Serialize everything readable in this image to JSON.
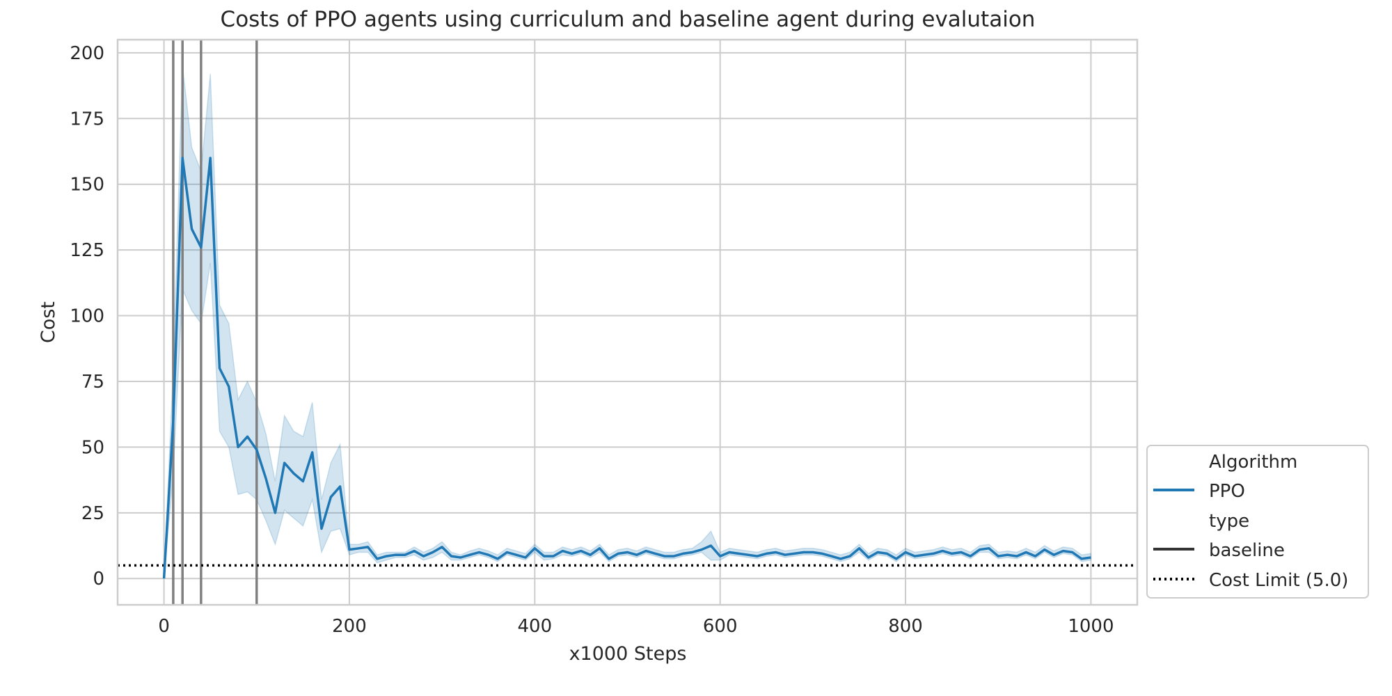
{
  "chart_data": {
    "type": "line",
    "title": "Costs of PPO agents using curriculum and baseline agent during evalutaion",
    "xlabel": "x1000 Steps",
    "ylabel": "Cost",
    "xlim": [
      -50,
      1050
    ],
    "ylim": [
      -10,
      205
    ],
    "xticks": [
      "0",
      "200",
      "400",
      "600",
      "800",
      "1000"
    ],
    "yticks": [
      "0",
      "25",
      "50",
      "75",
      "100",
      "125",
      "150",
      "175",
      "200"
    ],
    "grid": true,
    "legend_position": "lower-right-outside",
    "legend": {
      "title_algorithm": "Algorithm",
      "entry_ppo": "PPO",
      "title_type": "type",
      "entry_baseline": "baseline",
      "entry_cost_limit": "Cost Limit (5.0)"
    },
    "cost_limit": 5.0,
    "vertical_lines_x": [
      10,
      20,
      40,
      100
    ],
    "series": [
      {
        "name": "PPO",
        "color": "#1f77b4",
        "x": [
          0,
          10,
          20,
          30,
          40,
          50,
          60,
          70,
          80,
          90,
          100,
          110,
          120,
          130,
          140,
          150,
          160,
          170,
          180,
          190,
          200,
          210,
          220,
          230,
          240,
          250,
          260,
          270,
          280,
          290,
          300,
          310,
          320,
          330,
          340,
          350,
          360,
          370,
          380,
          390,
          400,
          410,
          420,
          430,
          440,
          450,
          460,
          470,
          480,
          490,
          500,
          510,
          520,
          530,
          540,
          550,
          560,
          570,
          580,
          590,
          600,
          610,
          620,
          630,
          640,
          650,
          660,
          670,
          680,
          690,
          700,
          710,
          720,
          730,
          740,
          750,
          760,
          770,
          780,
          790,
          800,
          810,
          820,
          830,
          840,
          850,
          860,
          870,
          880,
          890,
          900,
          910,
          920,
          930,
          940,
          950,
          960,
          970,
          980,
          990,
          1000
        ],
        "y": [
          0,
          60,
          160,
          133,
          126,
          160,
          80,
          73,
          50,
          54,
          49,
          38,
          25,
          44,
          40,
          37,
          48,
          19,
          31,
          35,
          11,
          11.5,
          12,
          7.5,
          8.5,
          9,
          9,
          10.5,
          8.5,
          10,
          12,
          8.5,
          8,
          9,
          10,
          9,
          7.5,
          10,
          9,
          8,
          11.5,
          8.5,
          8.5,
          10.5,
          9.5,
          10.5,
          9,
          11.5,
          7.5,
          9.5,
          10,
          9,
          10.5,
          9.5,
          8.5,
          8.5,
          9.5,
          10,
          11,
          12.5,
          8.5,
          10,
          9.5,
          9,
          8.5,
          9.5,
          10,
          9,
          9.5,
          10,
          10,
          9.5,
          8.5,
          7.5,
          8.5,
          11.5,
          8,
          10,
          9.5,
          7.5,
          10,
          8.5,
          9,
          9.5,
          10.5,
          9.5,
          10,
          8.5,
          11,
          11.5,
          8.5,
          9,
          8.5,
          10,
          8.5,
          11,
          9,
          10.5,
          10,
          7.5,
          8
        ],
        "ci_lower": [
          0,
          40,
          110,
          102,
          97,
          120,
          56,
          50,
          32,
          33,
          30,
          22,
          13,
          26,
          23,
          20,
          30,
          10,
          18,
          19,
          9,
          10,
          10,
          6,
          7,
          8,
          8,
          9,
          7,
          8,
          10,
          7,
          7,
          8,
          9,
          8,
          6.5,
          9,
          8,
          7,
          10,
          7,
          7.5,
          9,
          8.5,
          9.5,
          8,
          10,
          6.5,
          8.5,
          9,
          8,
          9.5,
          8.5,
          7.5,
          7.5,
          8.5,
          9,
          10,
          7,
          7,
          9,
          8.5,
          8,
          7.5,
          8.5,
          9,
          8,
          8.5,
          9,
          9,
          8.5,
          7.5,
          6.5,
          7.5,
          10,
          7,
          9,
          8.5,
          6.5,
          9,
          7.5,
          8,
          8.5,
          9.5,
          8.5,
          9,
          7.5,
          10,
          10,
          7.5,
          8,
          7.5,
          9,
          7.5,
          10,
          8,
          9.5,
          9,
          6.5,
          7
        ],
        "ci_upper": [
          0,
          80,
          195,
          164,
          155,
          192,
          104,
          97,
          68,
          75,
          67,
          55,
          37,
          62,
          56,
          54,
          67,
          30,
          44,
          51,
          13,
          13,
          14,
          9,
          10,
          10,
          10,
          12,
          10,
          11.5,
          14,
          10,
          9,
          10.5,
          11.5,
          10.5,
          9,
          11.5,
          10.5,
          9.5,
          13,
          10,
          10,
          12,
          11,
          12,
          10.5,
          13,
          9,
          11,
          11.5,
          10.5,
          12,
          11,
          10,
          10,
          11,
          11.5,
          14,
          18,
          10,
          11.5,
          11,
          10.5,
          10,
          11,
          11.5,
          10.5,
          11,
          11.5,
          11.5,
          11,
          10,
          9,
          10,
          13,
          9.5,
          11.5,
          11,
          9,
          11.5,
          10,
          10.5,
          11,
          12,
          11,
          11.5,
          10,
          12.5,
          13,
          10,
          10.5,
          10,
          11.5,
          10,
          12.5,
          10.5,
          12,
          11.5,
          9,
          9.5
        ]
      }
    ]
  }
}
